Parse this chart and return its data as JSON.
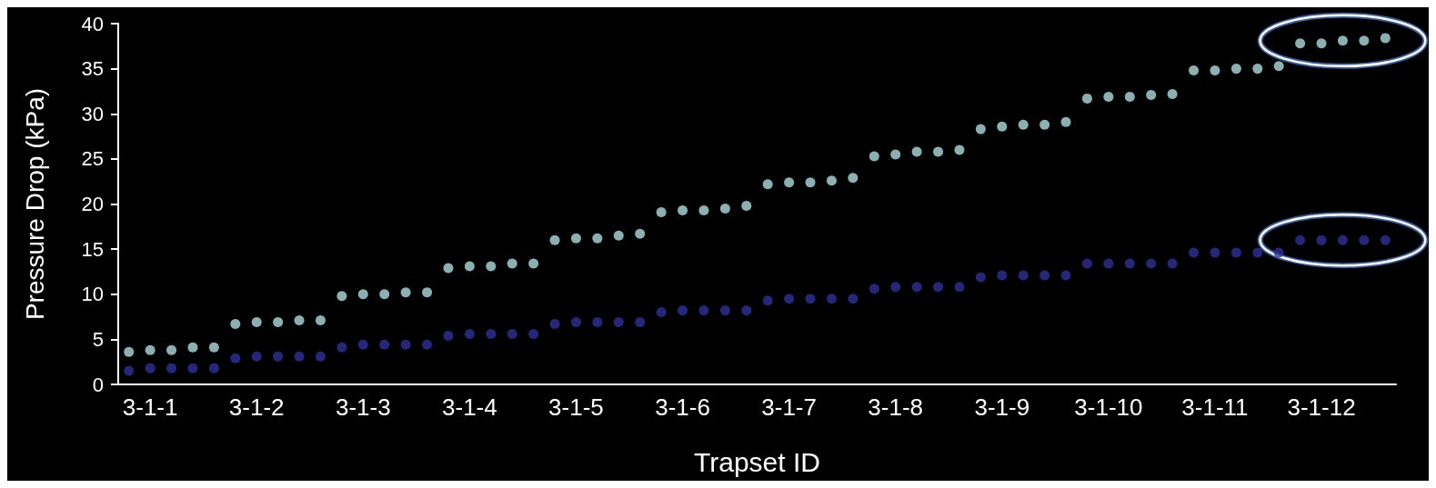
{
  "chart_data": {
    "type": "scatter",
    "xlabel": "Trapset ID",
    "ylabel": "Pressure Drop (kPa)",
    "categories": [
      null,
      "3-1-1",
      null,
      null,
      null,
      null,
      "3-1-2",
      null,
      null,
      null,
      null,
      "3-1-3",
      null,
      null,
      null,
      null,
      "3-1-4",
      null,
      null,
      null,
      null,
      "3-1-5",
      null,
      null,
      null,
      null,
      "3-1-6",
      null,
      null,
      null,
      null,
      "3-1-7",
      null,
      null,
      null,
      null,
      "3-1-8",
      null,
      null,
      null,
      null,
      "3-1-9",
      null,
      null,
      null,
      null,
      "3-1-10",
      null,
      null,
      null,
      null,
      "3-1-11",
      null,
      null,
      null,
      null,
      "3-1-12",
      null,
      null,
      null
    ],
    "series": [
      {
        "color": "#aedcdf",
        "values": [
          3.6,
          3.8,
          3.8,
          4.1,
          4.1,
          6.7,
          6.9,
          6.9,
          7.1,
          7.1,
          9.8,
          10,
          10,
          10.2,
          10.2,
          12.9,
          13.1,
          13.1,
          13.4,
          13.4,
          16,
          16.2,
          16.2,
          16.5,
          16.7,
          19.1,
          19.3,
          19.3,
          19.5,
          19.8,
          22.2,
          22.4,
          22.4,
          22.6,
          22.9,
          25.3,
          25.5,
          25.8,
          25.8,
          26,
          28.3,
          28.6,
          28.8,
          28.8,
          29.1,
          31.7,
          31.9,
          31.9,
          32.1,
          32.2,
          34.8,
          34.8,
          35,
          35,
          35.3,
          37.8,
          37.8,
          38.1,
          38.1,
          38.4
        ]
      },
      {
        "color": "#30309a",
        "values": [
          1.5,
          1.8,
          1.8,
          1.8,
          1.8,
          2.9,
          3.1,
          3.1,
          3.1,
          3.1,
          4.1,
          4.4,
          4.4,
          4.4,
          4.4,
          5.4,
          5.6,
          5.6,
          5.6,
          5.6,
          6.7,
          6.9,
          6.9,
          6.9,
          6.9,
          8,
          8.2,
          8.2,
          8.2,
          8.2,
          9.3,
          9.5,
          9.5,
          9.5,
          9.5,
          10.6,
          10.8,
          10.8,
          10.8,
          10.8,
          11.9,
          12.1,
          12.1,
          12.1,
          12.1,
          13.4,
          13.4,
          13.4,
          13.4,
          13.4,
          14.6,
          14.6,
          14.6,
          14.6,
          14.6,
          16,
          16,
          16,
          16,
          16
        ]
      }
    ],
    "ylim": [
      0,
      40
    ],
    "yticks": [
      0,
      5,
      10,
      15,
      20,
      25,
      30,
      35,
      40
    ],
    "grid": false,
    "marker": "circle"
  }
}
